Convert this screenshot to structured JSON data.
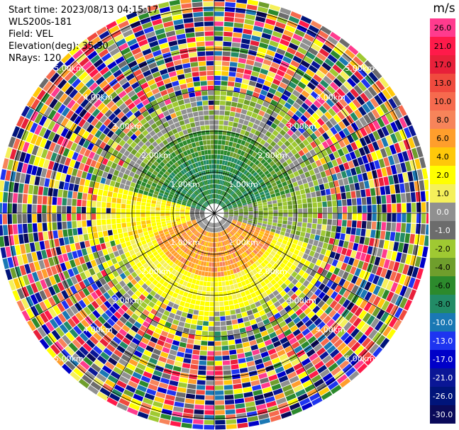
{
  "header": {
    "start_time": "Start time: 2023/08/13 04:15:17",
    "instrument": "WLS200s-181",
    "field": "Field: VEL",
    "elevation": "Elevation(deg): 35.30",
    "nrays": "NRays: 120"
  },
  "ppi": {
    "nrays": 120,
    "range_rings_km": [
      "1.00km",
      "2.00km",
      "3.00km",
      "4.00km",
      "5.00km"
    ],
    "noise_start_km": 3.0
  },
  "colorbar": {
    "unit": "m/s",
    "ticks": [
      "26.0",
      "21.0",
      "17.0",
      "13.0",
      "10.0",
      "8.0",
      "6.0",
      "4.0",
      "2.0",
      "1.0",
      "0.0",
      "-1.0",
      "-2.0",
      "-4.0",
      "-6.0",
      "-8.0",
      "-10.0",
      "-13.0",
      "-17.0",
      "-21.0",
      "-26.0",
      "-30.0"
    ],
    "colors": [
      "#ff3b8e",
      "#ff1a4a",
      "#e8203a",
      "#f04a3e",
      "#f66a4e",
      "#f7845a",
      "#ff9e2c",
      "#ffc80a",
      "#ffff00",
      "#f5f05a",
      "#909090",
      "#6c6c6c",
      "#9fc932",
      "#6f9e2c",
      "#2c8a2c",
      "#228b66",
      "#1a78b4",
      "#1e34f0",
      "#0000c8",
      "#0a1696",
      "#00147a",
      "#0a0a5a"
    ]
  }
}
